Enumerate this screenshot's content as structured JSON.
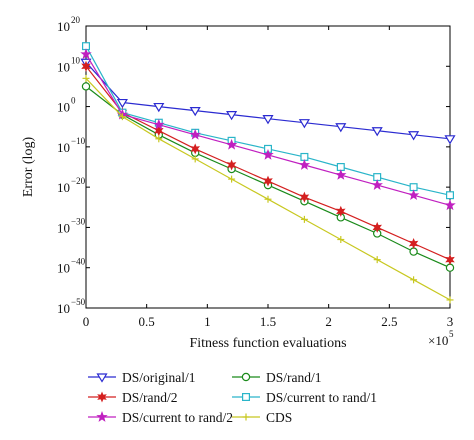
{
  "chart_data": {
    "type": "line",
    "xlabel": "Fitness function evaluations",
    "ylabel": "Error (log)",
    "x_multiplier": "×10",
    "x_multiplier_exp": "5",
    "xlim": [
      0,
      3
    ],
    "ylim_exp": [
      -50,
      20
    ],
    "y_scale": "log",
    "grid": false,
    "legend_position": "bottom",
    "x_ticks": [
      "0",
      "0.5",
      "1",
      "1.5",
      "2",
      "2.5",
      "3"
    ],
    "y_tick_base": "10",
    "y_tick_exps": [
      "20",
      "10",
      "0",
      "−10",
      "−20",
      "−30",
      "−40",
      "−50"
    ],
    "x": [
      0,
      0.3,
      0.6,
      0.9,
      1.2,
      1.5,
      1.8,
      2.1,
      2.4,
      2.7,
      3.0
    ],
    "series": [
      {
        "name": "DS/original/1",
        "color": "#2b2bd1",
        "marker": "triangle-down",
        "log10_values": [
          11,
          1,
          0,
          -1,
          -2,
          -3,
          -4,
          -5,
          -6,
          -7,
          -8
        ]
      },
      {
        "name": "DS/rand/1",
        "color": "#1a8a1a",
        "marker": "circle",
        "log10_values": [
          5,
          -2,
          -7,
          -11.5,
          -15.5,
          -19.5,
          -23.5,
          -27.5,
          -31.5,
          -36,
          -40
        ]
      },
      {
        "name": "DS/rand/2",
        "color": "#d42020",
        "marker": "star",
        "log10_values": [
          10,
          -1.5,
          -6,
          -10.5,
          -14.5,
          -18.5,
          -22.5,
          -26,
          -30,
          -34,
          -38
        ]
      },
      {
        "name": "DS/current to rand/1",
        "color": "#2ab5c9",
        "marker": "square",
        "log10_values": [
          15,
          -1.5,
          -4,
          -6.5,
          -8.5,
          -10.5,
          -12.5,
          -15,
          -17.5,
          -20,
          -22
        ]
      },
      {
        "name": "DS/current to rand/2",
        "color": "#c020c0",
        "marker": "pentagram",
        "log10_values": [
          13,
          -2,
          -4.5,
          -7,
          -9.5,
          -12,
          -14.5,
          -17,
          -19.5,
          -22,
          -24.5
        ]
      },
      {
        "name": "CDS",
        "color": "#c8c820",
        "marker": "plus",
        "log10_values": [
          7,
          -2.5,
          -8,
          -13,
          -18,
          -23,
          -28,
          -33,
          -38,
          -43,
          -48
        ]
      }
    ]
  }
}
